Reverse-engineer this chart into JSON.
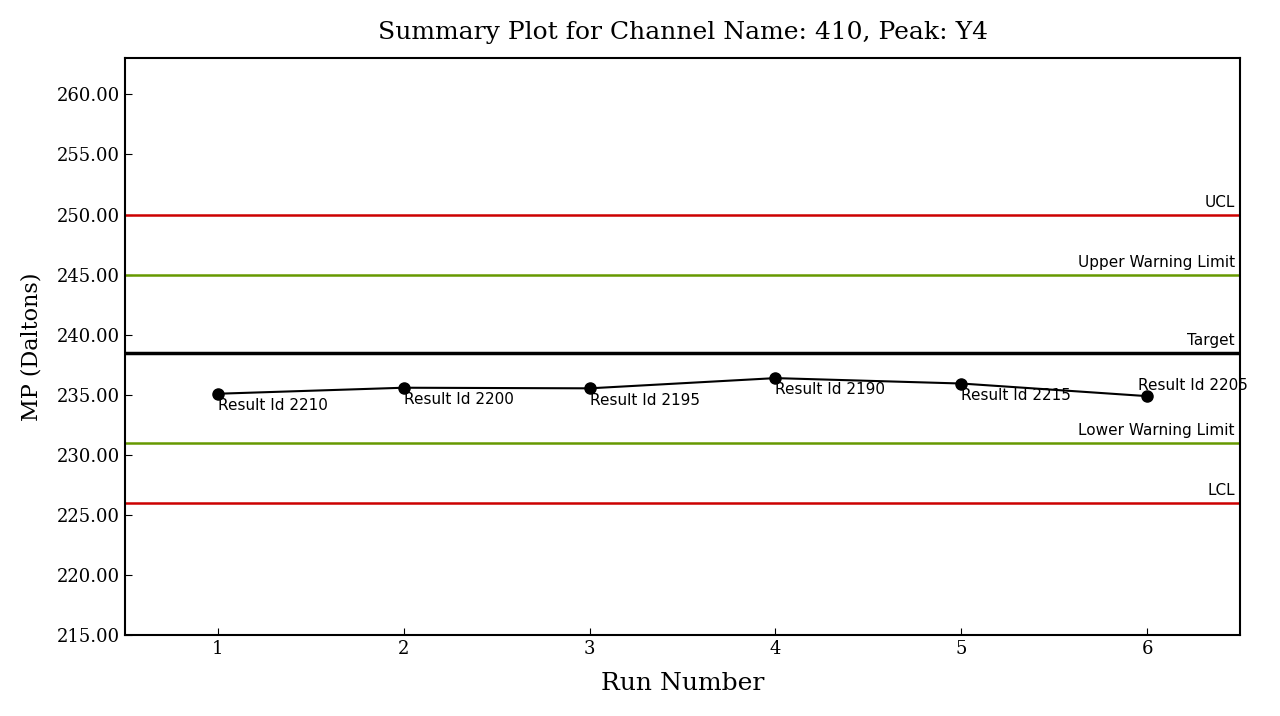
{
  "title": "Summary Plot for Channel Name: 410, Peak: Y4",
  "xlabel": "Run Number",
  "ylabel": "MP (Daltons)",
  "run_numbers": [
    1,
    2,
    3,
    4,
    5,
    6
  ],
  "mp_values": [
    235.1,
    235.6,
    235.55,
    236.4,
    235.95,
    234.9
  ],
  "point_labels": [
    "Result Id 2210",
    "Result Id 2200",
    "Result Id 2195",
    "Result Id 2190",
    "Result Id 2215",
    "Result Id 2205"
  ],
  "point_label_above": [
    false,
    false,
    false,
    false,
    false,
    true
  ],
  "ucl": 250.0,
  "lcl": 226.0,
  "upper_warning": 245.0,
  "lower_warning": 231.0,
  "target": 238.5,
  "ylim_min": 215.0,
  "ylim_max": 263.0,
  "xlim_min": 0.5,
  "xlim_max": 6.5,
  "ucl_color": "#cc0000",
  "lcl_color": "#cc0000",
  "warning_color": "#669900",
  "target_color": "#000000",
  "data_color": "#000000",
  "title_fontsize": 18,
  "label_fontsize": 16,
  "tick_fontsize": 13,
  "annotation_fontsize": 11,
  "line_label_fontsize": 11,
  "ytick_step": 5.0,
  "line_labels": {
    "ucl": "UCL",
    "upper_warning": "Upper Warning Limit",
    "target": "Target",
    "lower_warning": "Lower Warning Limit",
    "lcl": "LCL"
  }
}
